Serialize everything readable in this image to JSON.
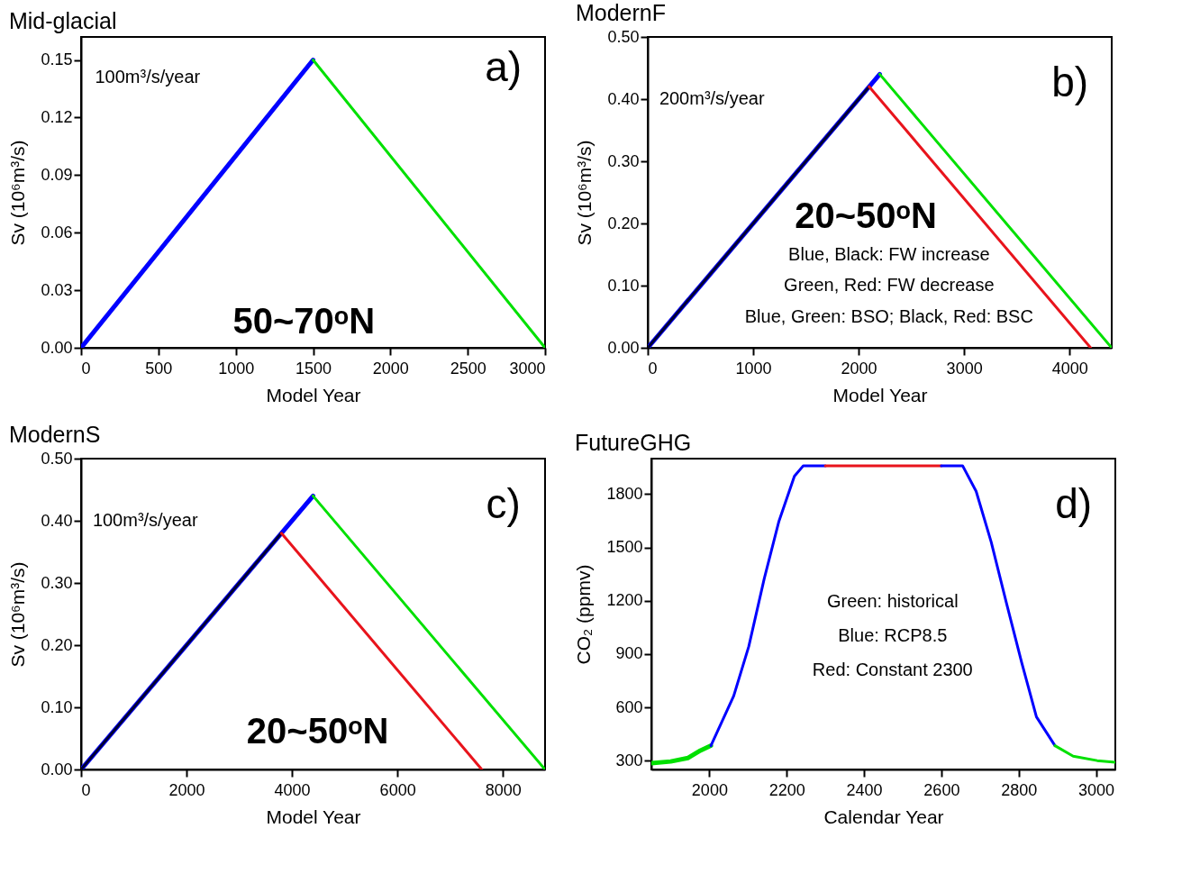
{
  "chart_data": [
    {
      "type": "line",
      "title": "Mid-glacial",
      "xlabel": "Model Year",
      "ylabel": "Sv (10⁶m³/s)",
      "xlim": [
        0,
        3000
      ],
      "xticks": [
        0,
        500,
        1000,
        1500,
        2000,
        2500,
        3000
      ],
      "ylim": [
        0,
        0.162
      ],
      "yticks": [
        {
          "value": 0,
          "label": "0.00"
        },
        {
          "value": 0.03,
          "label": "0.03"
        },
        {
          "value": 0.06,
          "label": "0.06"
        },
        {
          "value": 0.09,
          "label": "0.09"
        },
        {
          "value": 0.12,
          "label": "0.12"
        },
        {
          "value": 0.15,
          "label": "0.15"
        }
      ],
      "series": [
        {
          "color": "#0000ff",
          "x": [
            0,
            1500
          ],
          "values": [
            0,
            0.15
          ]
        },
        {
          "color": "#00e000",
          "x": [
            1500,
            3000
          ],
          "values": [
            0.15,
            0
          ]
        }
      ],
      "annotations": [
        "100m³/s/year",
        "a)",
        "50~70ᵒN"
      ]
    },
    {
      "type": "line",
      "title": "ModernF",
      "xlabel": "Model Year",
      "ylabel": "Sv (10⁶m³/s)",
      "xlim": [
        0,
        4400
      ],
      "xticks": [
        0,
        1000,
        2000,
        3000,
        4000
      ],
      "ylim": [
        0,
        0.5
      ],
      "yticks": [
        {
          "value": 0,
          "label": "0.00"
        },
        {
          "value": 0.1,
          "label": "0.10"
        },
        {
          "value": 0.2,
          "label": "0.20"
        },
        {
          "value": 0.3,
          "label": "0.30"
        },
        {
          "value": 0.4,
          "label": "0.40"
        },
        {
          "value": 0.5,
          "label": "0.50"
        }
      ],
      "series": [
        {
          "color": "#0000ff",
          "x": [
            0,
            2200
          ],
          "values": [
            0,
            0.44
          ]
        },
        {
          "color": "#000033",
          "x": [
            0,
            2100
          ],
          "values": [
            0,
            0.42
          ]
        },
        {
          "color": "#00e000",
          "x": [
            2200,
            4400
          ],
          "values": [
            0.44,
            0
          ]
        },
        {
          "color": "#e8141c",
          "x": [
            2100,
            4200
          ],
          "values": [
            0.42,
            0
          ]
        }
      ],
      "annotations": [
        "200m³/s/year",
        "b)",
        "20~50ᵒN",
        "Blue, Black: FW increase",
        "Green, Red: FW decrease",
        "Blue, Green: BSO; Black, Red: BSC"
      ]
    },
    {
      "type": "line",
      "title": "ModernS",
      "xlabel": "Model Year",
      "ylabel": "Sv (10⁶m³/s)",
      "xlim": [
        0,
        8800
      ],
      "xticks": [
        0,
        2000,
        4000,
        6000,
        8000
      ],
      "ylim": [
        0,
        0.5
      ],
      "yticks": [
        {
          "value": 0,
          "label": "0.00"
        },
        {
          "value": 0.1,
          "label": "0.10"
        },
        {
          "value": 0.2,
          "label": "0.20"
        },
        {
          "value": 0.3,
          "label": "0.30"
        },
        {
          "value": 0.4,
          "label": "0.40"
        },
        {
          "value": 0.5,
          "label": "0.50"
        }
      ],
      "series": [
        {
          "color": "#0000ff",
          "x": [
            0,
            4400
          ],
          "values": [
            0,
            0.44
          ]
        },
        {
          "color": "#000033",
          "x": [
            0,
            3800
          ],
          "values": [
            0,
            0.38
          ]
        },
        {
          "color": "#00e000",
          "x": [
            4400,
            8800
          ],
          "values": [
            0.44,
            0
          ]
        },
        {
          "color": "#e8141c",
          "x": [
            3800,
            7600
          ],
          "values": [
            0.38,
            0
          ]
        }
      ],
      "annotations": [
        "100m³/s/year",
        "c)",
        "20~50ᵒN"
      ]
    },
    {
      "type": "line",
      "title": "FutureGHG",
      "xlabel": "Calendar Year",
      "ylabel": "CO₂ (ppmv)",
      "xlim": [
        1850,
        3050
      ],
      "xticks": [
        2000,
        2200,
        2400,
        2600,
        2800,
        3000
      ],
      "ylim": [
        250,
        2000
      ],
      "yticks": [
        300,
        600,
        900,
        1200,
        1500,
        1800
      ],
      "series": [
        {
          "color": "#00e000",
          "x": [
            1850,
            1900,
            1945,
            1977,
            2004
          ],
          "values": [
            286,
            295,
            315,
            357,
            384
          ]
        },
        {
          "color": "#0000ff",
          "x": [
            2004,
            2063,
            2102,
            2142,
            2180,
            2220,
            2243,
            2300
          ],
          "values": [
            384,
            664,
            943,
            1325,
            1648,
            1901,
            1960,
            1960
          ]
        },
        {
          "color": "#e8141c",
          "x": [
            2300,
            2600
          ],
          "values": [
            1960,
            1960
          ]
        },
        {
          "color": "#0000ff",
          "x": [
            2600,
            2655,
            2690,
            2729,
            2768,
            2808,
            2846,
            2894
          ],
          "values": [
            1960,
            1960,
            1816,
            1530,
            1190,
            851,
            546,
            384
          ]
        },
        {
          "color": "#00e000",
          "x": [
            2894,
            2941,
            3003,
            3050
          ],
          "values": [
            384,
            325,
            300,
            290
          ]
        }
      ],
      "annotations": [
        "d)",
        "Green: historical",
        "Blue: RCP8.5",
        "Red: Constant 2300"
      ]
    }
  ]
}
